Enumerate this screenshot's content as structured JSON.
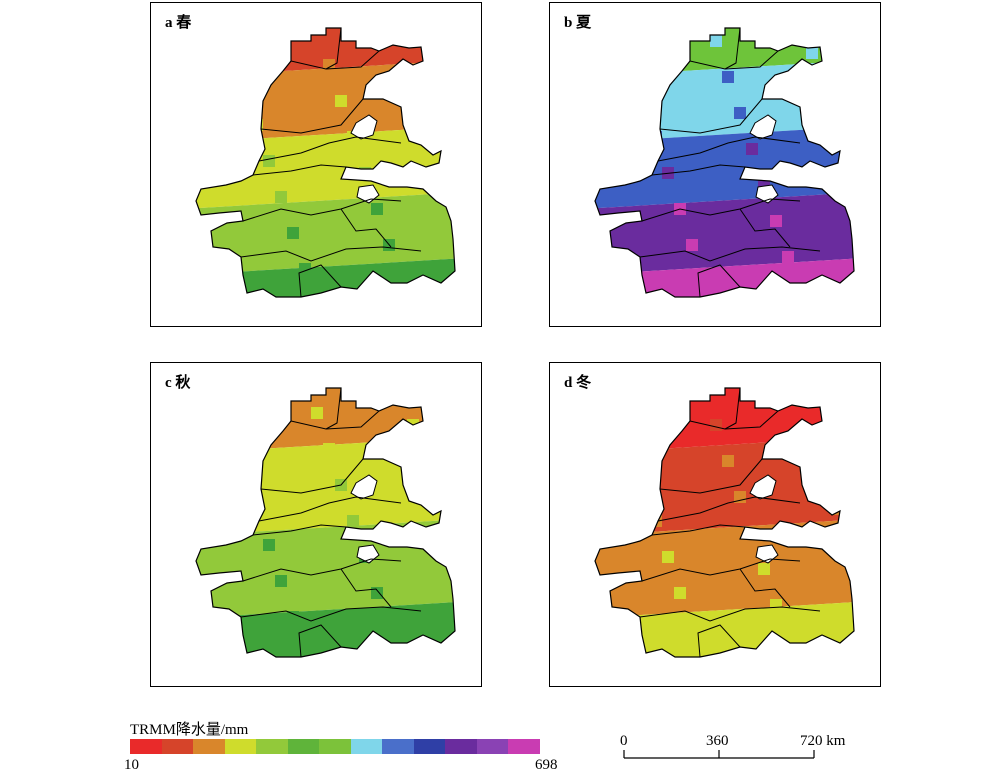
{
  "panels": [
    {
      "label": "a 春",
      "zones": [
        "#d6442a",
        "#d9862b",
        "#cfdc2c",
        "#92c93a",
        "#3fa33a"
      ]
    },
    {
      "label": "b 夏",
      "zones": [
        "#6ec43a",
        "#7fd6ea",
        "#3d5fc4",
        "#6a2c9e",
        "#c93cb2"
      ]
    },
    {
      "label": "c 秋",
      "zones": [
        "#d9862b",
        "#cfdc2c",
        "#92c93a",
        "#3fa33a"
      ]
    },
    {
      "label": "d 冬",
      "zones": [
        "#e92a2a",
        "#d6442a",
        "#d9862b",
        "#cfdc2c"
      ]
    }
  ],
  "legend": {
    "title": "TRMM降水量/mm",
    "min": "10",
    "max": "698",
    "colors": [
      "#e92a2a",
      "#d6442a",
      "#d9862b",
      "#cfdc2c",
      "#92c93a",
      "#5fb43a",
      "#7cc23a",
      "#7fd6ea",
      "#4a6fca",
      "#2f3fa6",
      "#6a2c9e",
      "#8a42b4",
      "#c93cb2"
    ]
  },
  "scalebar": {
    "ticks": [
      "0",
      "360",
      "720 km"
    ]
  }
}
